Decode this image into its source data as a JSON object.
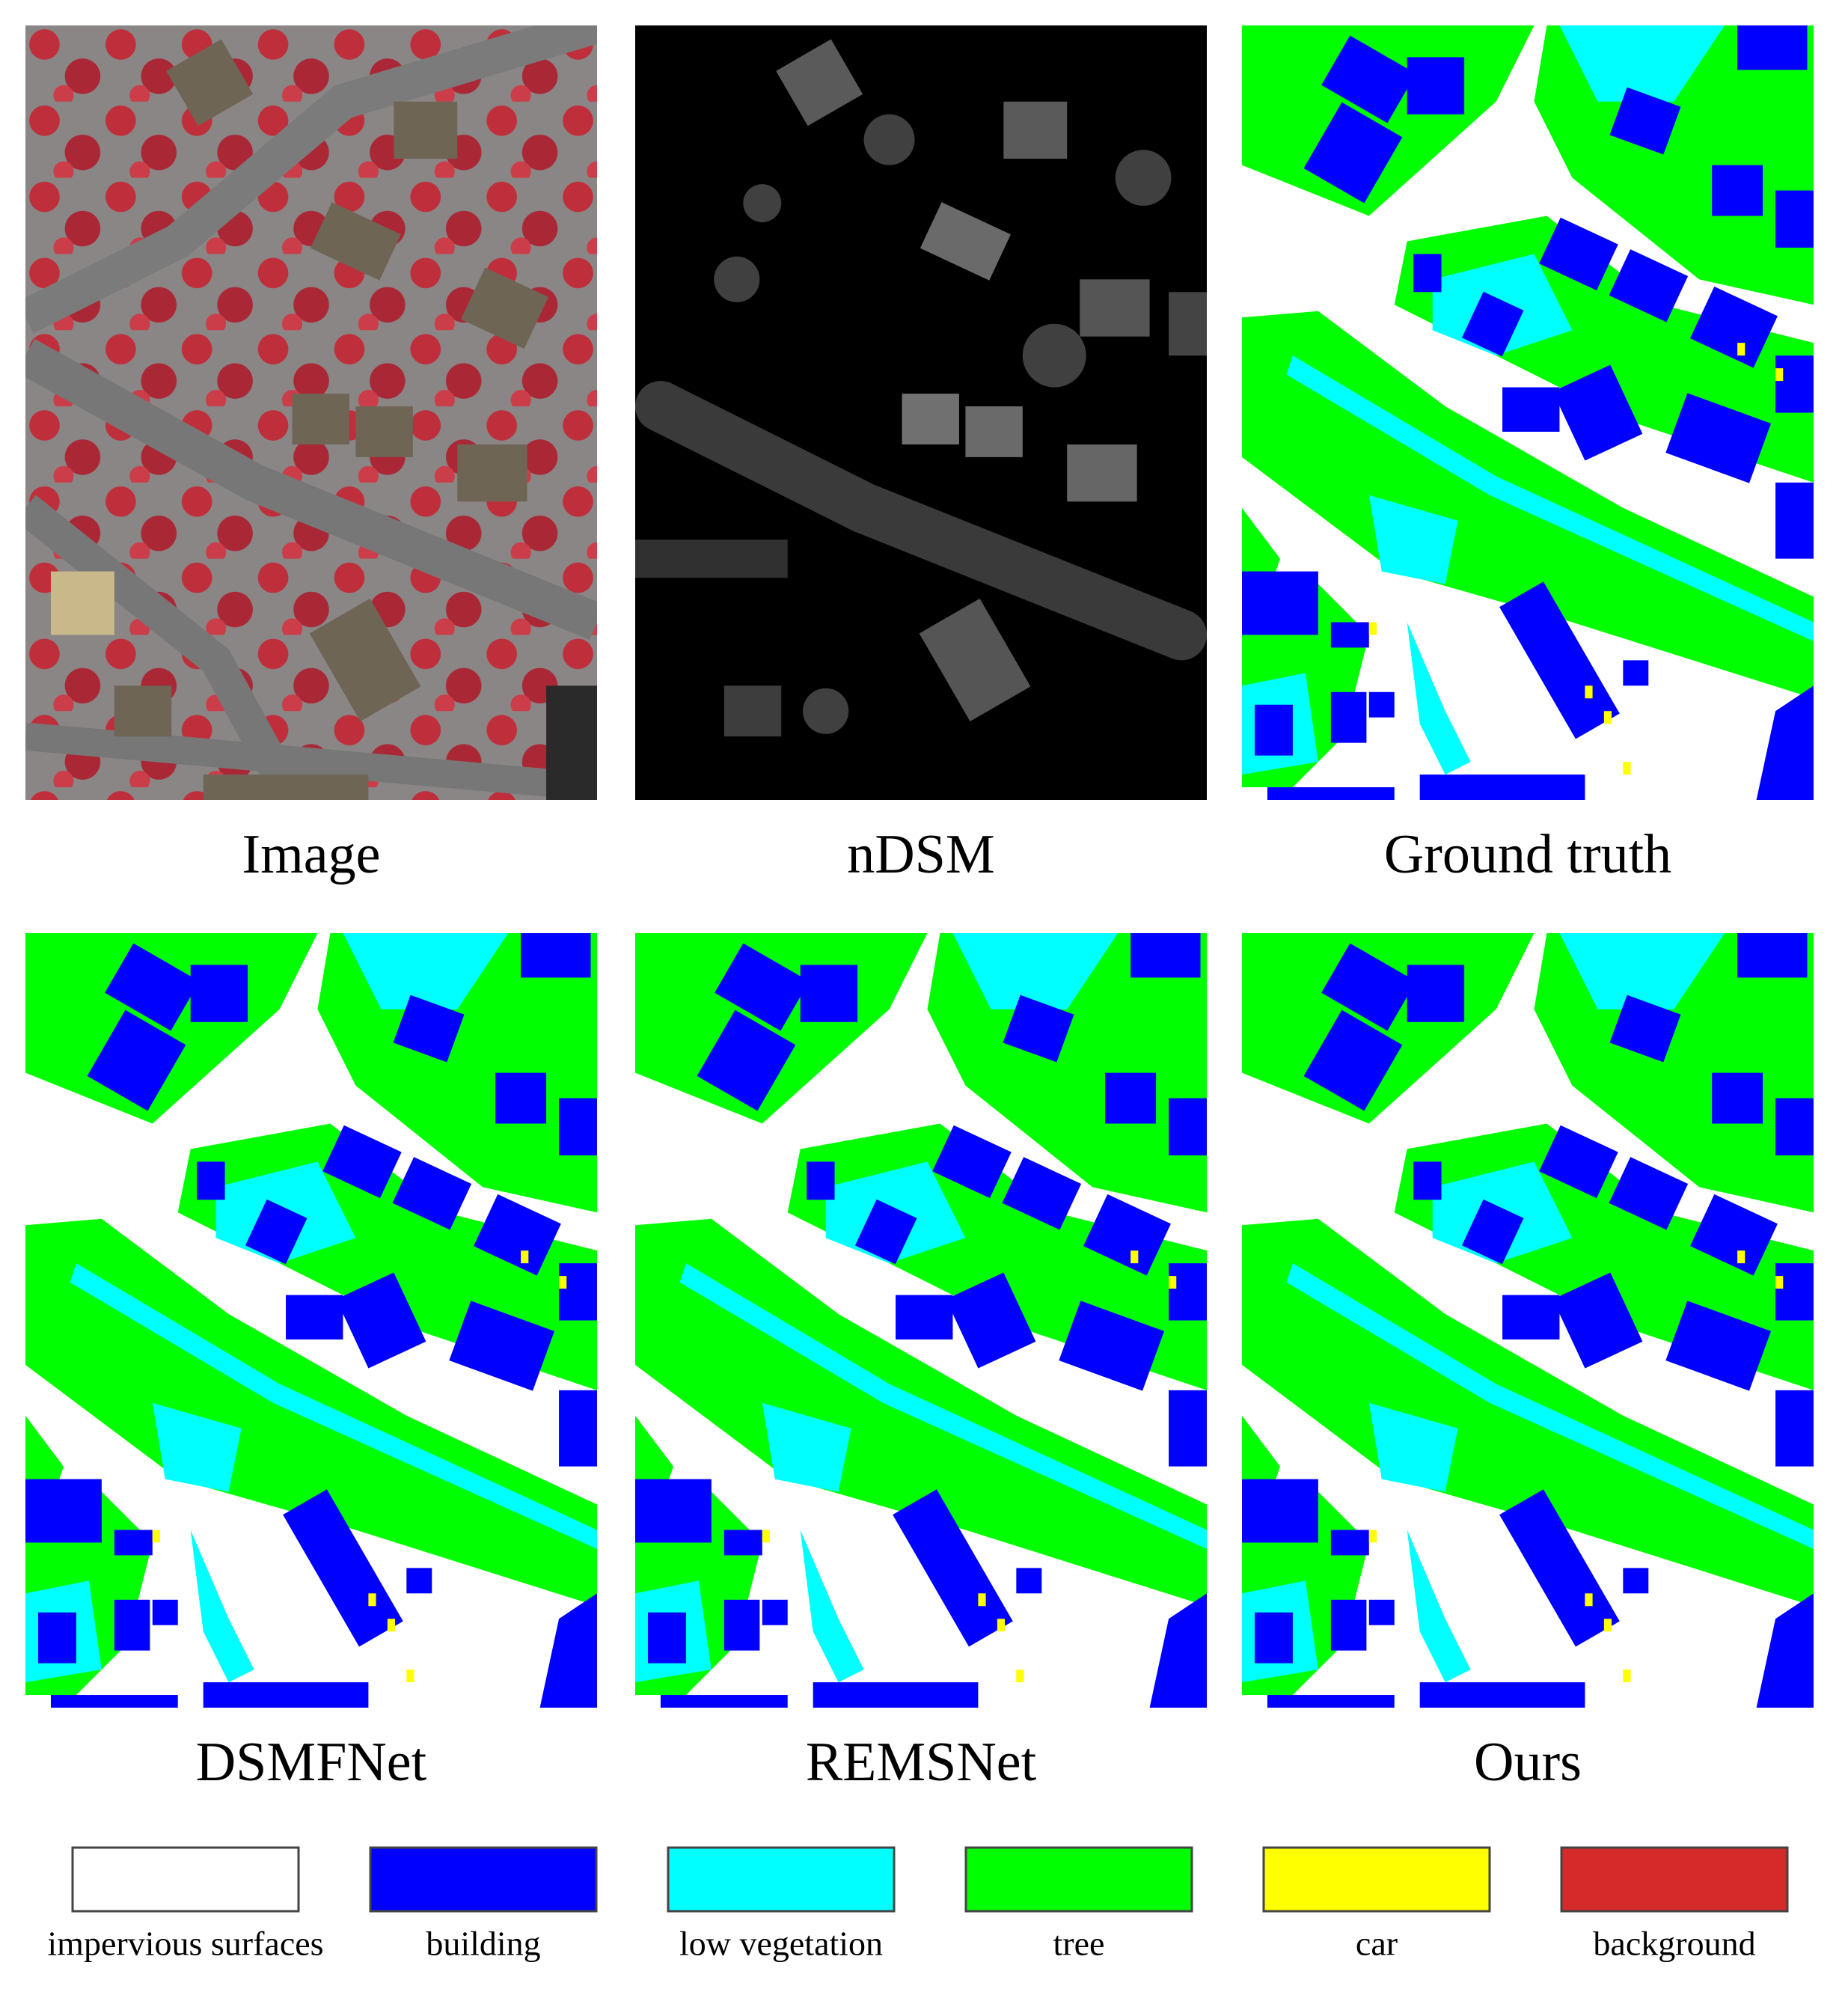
{
  "panels": [
    {
      "caption": "Image"
    },
    {
      "caption": "nDSM"
    },
    {
      "caption": "Ground truth"
    },
    {
      "caption": "DSMFNet"
    },
    {
      "caption": "REMSNet"
    },
    {
      "caption": "Ours"
    }
  ],
  "legend": [
    {
      "label": "impervious surfaces",
      "color": "#ffffff"
    },
    {
      "label": "building",
      "color": "#0000ff"
    },
    {
      "label": "low vegetation",
      "color": "#00ffff"
    },
    {
      "label": "tree",
      "color": "#00ff00"
    },
    {
      "label": "car",
      "color": "#ffff00"
    },
    {
      "label": "background",
      "color": "#d42a2a"
    }
  ]
}
